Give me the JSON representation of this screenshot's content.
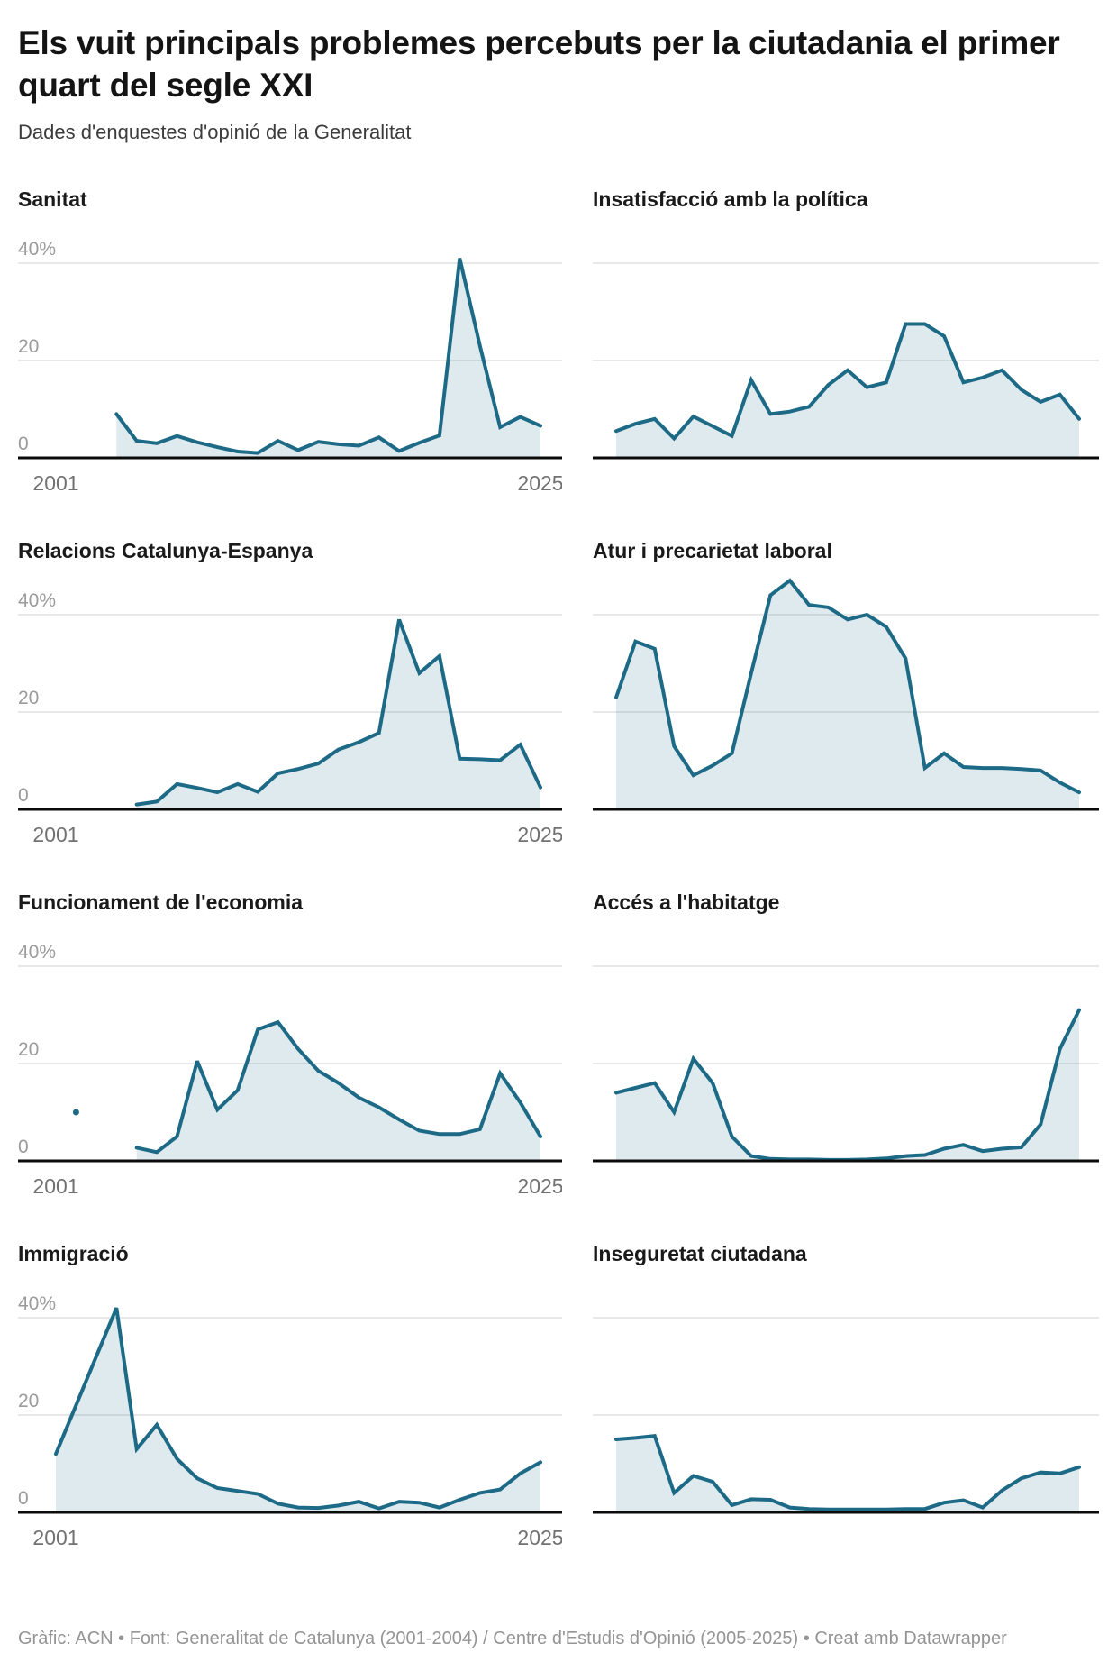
{
  "header": {
    "title": "Els vuit principals problemes percebuts per la ciutadania el primer quart del segle XXI",
    "subtitle": "Dades d'enquestes d'opinió de la Generalitat"
  },
  "footer": {
    "text": "Gràfic: ACN • Font: Generalitat de Catalunya (2001-2004) / Centre d'Estudis d'Opinió (2005-2025) • Creat amb Datawrapper"
  },
  "colors": {
    "line": "#1d6a87",
    "fill": "rgba(29,106,135,0.14)",
    "grid": "#e0e0e0",
    "axis": "#0b0b0b",
    "y_tick_text": "#9b9b9b",
    "x_tick_text": "#717171"
  },
  "axis": {
    "y_tick_labels": [
      "40%",
      "20",
      "0"
    ],
    "y_tick_values": [
      40,
      20,
      0
    ],
    "x_tick_labels": [
      "2001",
      "2025"
    ],
    "x_range": [
      2001,
      2025
    ],
    "y_range": [
      0,
      45
    ],
    "grid": "horizontal-only"
  },
  "chart_data": [
    {
      "type": "area",
      "title": "Sanitat",
      "axis_labels_visible": true,
      "x": [
        2004,
        2005,
        2006,
        2007,
        2008,
        2009,
        2010,
        2011,
        2012,
        2013,
        2014,
        2015,
        2016,
        2017,
        2018,
        2019,
        2020,
        2021,
        2022,
        2023,
        2024,
        2025
      ],
      "values": [
        9,
        3.5,
        3,
        4.5,
        3.2,
        2.2,
        1.3,
        1,
        3.5,
        1.6,
        3.3,
        2.8,
        2.5,
        4.2,
        1.4,
        3.1,
        4.6,
        41,
        23,
        6.3,
        8.4,
        6.6
      ]
    },
    {
      "type": "area",
      "title": "Insatisfacció amb la política",
      "axis_labels_visible": false,
      "x": [
        2001,
        2002,
        2003,
        2004,
        2005,
        2006,
        2007,
        2008,
        2009,
        2010,
        2011,
        2012,
        2013,
        2014,
        2015,
        2016,
        2017,
        2018,
        2019,
        2020,
        2021,
        2022,
        2023,
        2024,
        2025
      ],
      "values": [
        5.5,
        7,
        8,
        4,
        8.5,
        6.5,
        4.5,
        16,
        9,
        9.5,
        10.5,
        15,
        18,
        14.5,
        15.5,
        27.5,
        27.5,
        25,
        15.5,
        16.5,
        18,
        14,
        11.5,
        13,
        8
      ]
    },
    {
      "type": "area",
      "title": "Relacions Catalunya-Espanya",
      "axis_labels_visible": true,
      "x": [
        2005,
        2006,
        2007,
        2008,
        2009,
        2010,
        2011,
        2012,
        2013,
        2014,
        2015,
        2016,
        2017,
        2018,
        2019,
        2020,
        2021,
        2022,
        2023,
        2024,
        2025
      ],
      "values": [
        1,
        1.6,
        5.2,
        4.4,
        3.5,
        5.2,
        3.6,
        7.4,
        8.3,
        9.4,
        12.3,
        13.8,
        15.7,
        39,
        28,
        31.5,
        10.4,
        10.3,
        10.1,
        13.3,
        4.5
      ]
    },
    {
      "type": "area",
      "title": "Atur i precarietat laboral",
      "axis_labels_visible": false,
      "x": [
        2001,
        2002,
        2003,
        2004,
        2005,
        2006,
        2007,
        2008,
        2009,
        2010,
        2011,
        2012,
        2013,
        2014,
        2015,
        2016,
        2017,
        2018,
        2019,
        2020,
        2021,
        2022,
        2023,
        2024,
        2025
      ],
      "values": [
        23,
        34.5,
        33,
        13,
        7,
        9,
        11.5,
        28,
        44,
        47,
        42,
        41.5,
        39,
        40,
        37.5,
        31,
        8.5,
        11.5,
        8.7,
        8.5,
        8.5,
        8.3,
        8,
        5.5,
        3.5
      ]
    },
    {
      "type": "area",
      "title": "Funcionament de l'economia",
      "axis_labels_visible": true,
      "isolated_point": {
        "x": 2002,
        "value": 10
      },
      "x": [
        2005,
        2006,
        2007,
        2008,
        2009,
        2010,
        2011,
        2012,
        2013,
        2014,
        2015,
        2016,
        2017,
        2018,
        2019,
        2020,
        2021,
        2022,
        2023,
        2024,
        2025
      ],
      "values": [
        2.7,
        1.8,
        5,
        20.5,
        10.5,
        14.5,
        27,
        28.5,
        23,
        18.5,
        16,
        13,
        11,
        8.5,
        6.2,
        5.5,
        5.5,
        6.5,
        18,
        12,
        5
      ]
    },
    {
      "type": "area",
      "title": "Accés a l'habitatge",
      "axis_labels_visible": false,
      "x": [
        2001,
        2002,
        2003,
        2004,
        2005,
        2006,
        2007,
        2008,
        2009,
        2010,
        2011,
        2012,
        2013,
        2014,
        2015,
        2016,
        2017,
        2018,
        2019,
        2020,
        2021,
        2022,
        2023,
        2024,
        2025
      ],
      "values": [
        14,
        15,
        16,
        10,
        21,
        16,
        5,
        1,
        0.4,
        0.3,
        0.3,
        0.2,
        0.2,
        0.3,
        0.5,
        1,
        1.2,
        2.5,
        3.3,
        2,
        2.5,
        2.8,
        7.5,
        23,
        31
      ]
    },
    {
      "type": "area",
      "title": "Immigració",
      "axis_labels_visible": true,
      "x": [
        2001,
        2002,
        2003,
        2004,
        2005,
        2006,
        2007,
        2008,
        2009,
        2010,
        2011,
        2012,
        2013,
        2014,
        2015,
        2016,
        2017,
        2018,
        2019,
        2020,
        2021,
        2022,
        2023,
        2024,
        2025
      ],
      "values": [
        12,
        22,
        32,
        42,
        13,
        18,
        11,
        7,
        5,
        4.4,
        3.8,
        1.8,
        1,
        0.9,
        1.4,
        2.2,
        0.8,
        2.2,
        2,
        1,
        2.6,
        4,
        4.7,
        8,
        10.3
      ]
    },
    {
      "type": "area",
      "title": "Inseguretat ciutadana",
      "axis_labels_visible": false,
      "x": [
        2001,
        2002,
        2003,
        2004,
        2005,
        2006,
        2007,
        2008,
        2009,
        2010,
        2011,
        2012,
        2013,
        2014,
        2015,
        2016,
        2017,
        2018,
        2019,
        2020,
        2021,
        2022,
        2023,
        2024,
        2025
      ],
      "values": [
        15,
        15.3,
        15.7,
        4,
        7.5,
        6.3,
        1.5,
        2.7,
        2.6,
        1,
        0.7,
        0.6,
        0.6,
        0.6,
        0.6,
        0.7,
        0.7,
        2,
        2.5,
        1,
        4.5,
        7,
        8.2,
        8,
        9.3
      ]
    }
  ]
}
